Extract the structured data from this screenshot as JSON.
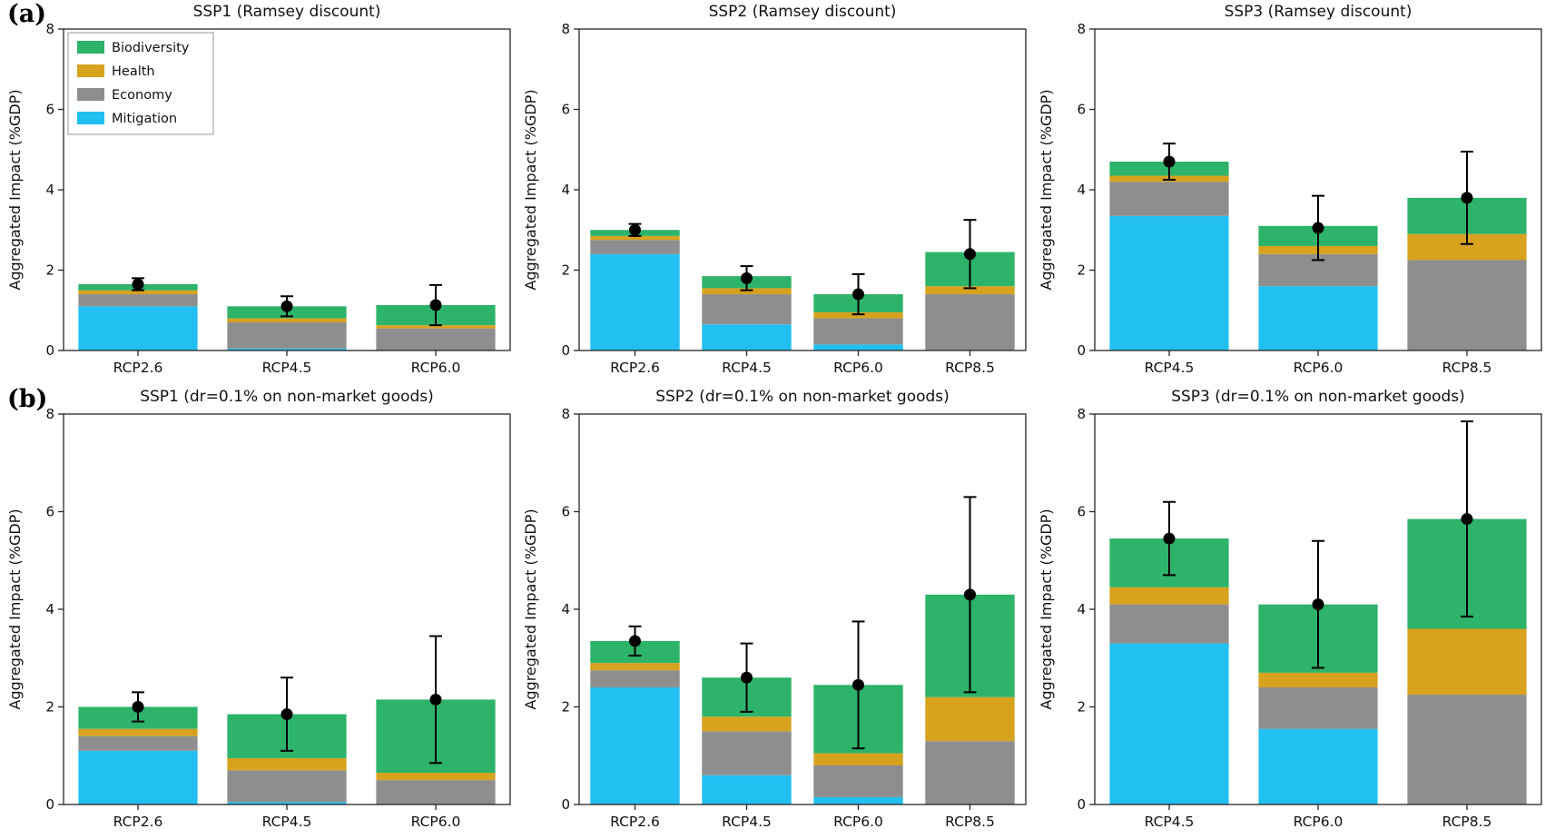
{
  "panel_labels": [
    "(a)",
    "(b)"
  ],
  "legend": {
    "entries": [
      {
        "label": "Biodiversity",
        "color": "#2db36a"
      },
      {
        "label": "Health",
        "color": "#d7a21e"
      },
      {
        "label": "Economy",
        "color": "#8e8e8e"
      },
      {
        "label": "Mitigation",
        "color": "#22c0f0"
      }
    ]
  },
  "colors": {
    "biodiversity": "#2db36a",
    "health": "#d7a21e",
    "economy": "#8e8e8e",
    "mitigation": "#22c0f0",
    "error": "#000000",
    "axis": "#262626"
  },
  "chart_data": [
    {
      "type": "bar",
      "stacked": true,
      "title": "SSP1 (Ramsey discount)",
      "ylabel": "Aggregated Impact (%GDP)",
      "ylim": [
        0,
        8
      ],
      "yticks": [
        0,
        2,
        4,
        6,
        8
      ],
      "categories": [
        "RCP2.6",
        "RCP4.5",
        "RCP6.0"
      ],
      "series": [
        {
          "name": "Mitigation",
          "color": "#22c0f0",
          "values": [
            1.1,
            0.05,
            0.0
          ]
        },
        {
          "name": "Economy",
          "color": "#8e8e8e",
          "values": [
            0.3,
            0.65,
            0.55
          ]
        },
        {
          "name": "Health",
          "color": "#d7a21e",
          "values": [
            0.1,
            0.1,
            0.08
          ]
        },
        {
          "name": "Biodiversity",
          "color": "#2db36a",
          "values": [
            0.15,
            0.3,
            0.5
          ]
        }
      ],
      "dots": [
        1.65,
        1.1,
        1.13
      ],
      "errors": [
        0.15,
        0.25,
        0.5
      ],
      "show_legend": true
    },
    {
      "type": "bar",
      "stacked": true,
      "title": "SSP2 (Ramsey discount)",
      "ylabel": "Aggregated Impact (%GDP)",
      "ylim": [
        0,
        8
      ],
      "yticks": [
        0,
        2,
        4,
        6,
        8
      ],
      "categories": [
        "RCP2.6",
        "RCP4.5",
        "RCP6.0",
        "RCP8.5"
      ],
      "series": [
        {
          "name": "Mitigation",
          "color": "#22c0f0",
          "values": [
            2.4,
            0.65,
            0.15,
            0.0
          ]
        },
        {
          "name": "Economy",
          "color": "#8e8e8e",
          "values": [
            0.35,
            0.75,
            0.65,
            1.4
          ]
        },
        {
          "name": "Health",
          "color": "#d7a21e",
          "values": [
            0.1,
            0.15,
            0.15,
            0.2
          ]
        },
        {
          "name": "Biodiversity",
          "color": "#2db36a",
          "values": [
            0.15,
            0.3,
            0.45,
            0.85
          ]
        }
      ],
      "dots": [
        3.0,
        1.8,
        1.4,
        2.4
      ],
      "errors": [
        0.15,
        0.3,
        0.5,
        0.85
      ],
      "show_legend": false
    },
    {
      "type": "bar",
      "stacked": true,
      "title": "SSP3 (Ramsey discount)",
      "ylabel": "Aggregated Impact (%GDP)",
      "ylim": [
        0,
        8
      ],
      "yticks": [
        0,
        2,
        4,
        6,
        8
      ],
      "categories": [
        "RCP4.5",
        "RCP6.0",
        "RCP8.5"
      ],
      "series": [
        {
          "name": "Mitigation",
          "color": "#22c0f0",
          "values": [
            3.35,
            1.6,
            0.0
          ]
        },
        {
          "name": "Economy",
          "color": "#8e8e8e",
          "values": [
            0.85,
            0.8,
            2.25
          ]
        },
        {
          "name": "Health",
          "color": "#d7a21e",
          "values": [
            0.15,
            0.2,
            0.65
          ]
        },
        {
          "name": "Biodiversity",
          "color": "#2db36a",
          "values": [
            0.35,
            0.5,
            0.9
          ]
        }
      ],
      "dots": [
        4.7,
        3.05,
        3.8
      ],
      "errors": [
        0.45,
        0.8,
        1.15
      ],
      "show_legend": false
    },
    {
      "type": "bar",
      "stacked": true,
      "title": "SSP1 (dr=0.1% on non-market goods)",
      "ylabel": "Aggregated Impact (%GDP)",
      "ylim": [
        0,
        8
      ],
      "yticks": [
        0,
        2,
        4,
        6,
        8
      ],
      "categories": [
        "RCP2.6",
        "RCP4.5",
        "RCP6.0"
      ],
      "series": [
        {
          "name": "Mitigation",
          "color": "#22c0f0",
          "values": [
            1.1,
            0.05,
            0.0
          ]
        },
        {
          "name": "Economy",
          "color": "#8e8e8e",
          "values": [
            0.3,
            0.65,
            0.5
          ]
        },
        {
          "name": "Health",
          "color": "#d7a21e",
          "values": [
            0.15,
            0.25,
            0.15
          ]
        },
        {
          "name": "Biodiversity",
          "color": "#2db36a",
          "values": [
            0.45,
            0.9,
            1.5
          ]
        }
      ],
      "dots": [
        2.0,
        1.85,
        2.15
      ],
      "errors": [
        0.3,
        0.75,
        1.3
      ],
      "show_legend": false
    },
    {
      "type": "bar",
      "stacked": true,
      "title": "SSP2 (dr=0.1% on non-market goods)",
      "ylabel": "Aggregated Impact (%GDP)",
      "ylim": [
        0,
        8
      ],
      "yticks": [
        0,
        2,
        4,
        6,
        8
      ],
      "categories": [
        "RCP2.6",
        "RCP4.5",
        "RCP6.0",
        "RCP8.5"
      ],
      "series": [
        {
          "name": "Mitigation",
          "color": "#22c0f0",
          "values": [
            2.4,
            0.6,
            0.15,
            0.0
          ]
        },
        {
          "name": "Economy",
          "color": "#8e8e8e",
          "values": [
            0.35,
            0.9,
            0.65,
            1.3
          ]
        },
        {
          "name": "Health",
          "color": "#d7a21e",
          "values": [
            0.15,
            0.3,
            0.25,
            0.9
          ]
        },
        {
          "name": "Biodiversity",
          "color": "#2db36a",
          "values": [
            0.45,
            0.8,
            1.4,
            2.1
          ]
        }
      ],
      "dots": [
        3.35,
        2.6,
        2.45,
        4.3
      ],
      "errors": [
        0.3,
        0.7,
        1.3,
        2.0
      ],
      "show_legend": false
    },
    {
      "type": "bar",
      "stacked": true,
      "title": "SSP3 (dr=0.1% on non-market goods)",
      "ylabel": "Aggregated Impact (%GDP)",
      "ylim": [
        0,
        8
      ],
      "yticks": [
        0,
        2,
        4,
        6,
        8
      ],
      "categories": [
        "RCP4.5",
        "RCP6.0",
        "RCP8.5"
      ],
      "series": [
        {
          "name": "Mitigation",
          "color": "#22c0f0",
          "values": [
            3.3,
            1.55,
            0.0
          ]
        },
        {
          "name": "Economy",
          "color": "#8e8e8e",
          "values": [
            0.8,
            0.85,
            2.25
          ]
        },
        {
          "name": "Health",
          "color": "#d7a21e",
          "values": [
            0.35,
            0.3,
            1.35
          ]
        },
        {
          "name": "Biodiversity",
          "color": "#2db36a",
          "values": [
            1.0,
            1.4,
            2.25
          ]
        }
      ],
      "dots": [
        5.45,
        4.1,
        5.85
      ],
      "errors": [
        0.75,
        1.3,
        2.0
      ],
      "show_legend": false
    }
  ]
}
